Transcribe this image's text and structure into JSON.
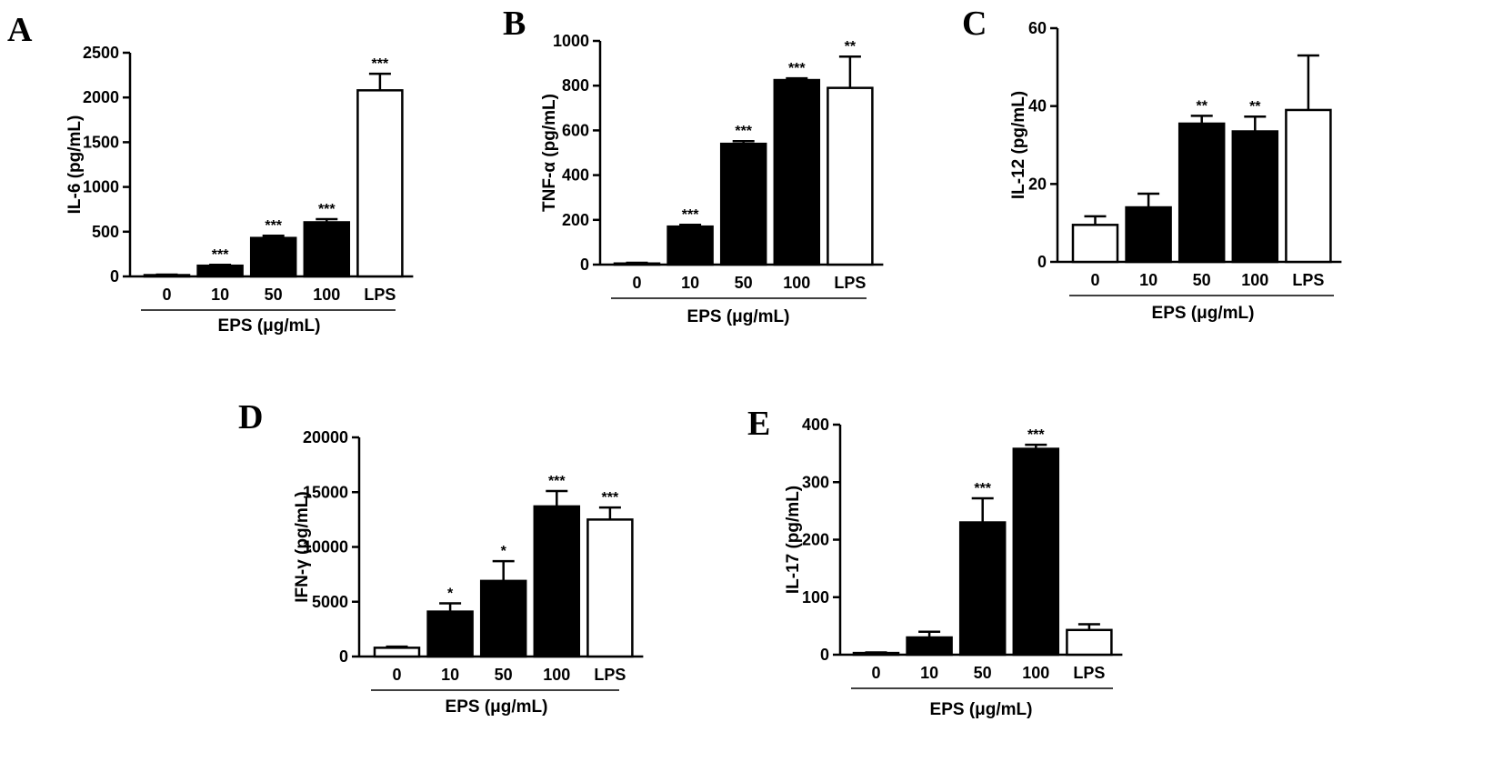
{
  "chart_data": [
    {
      "type": "bar",
      "panel": "A",
      "categories": [
        "0",
        "10",
        "50",
        "100",
        "LPS"
      ],
      "values": [
        15,
        120,
        430,
        605,
        2080
      ],
      "errors": [
        5,
        10,
        25,
        35,
        185
      ],
      "significance": [
        "",
        "***",
        "***",
        "***",
        "***"
      ],
      "fill": [
        "white",
        "black",
        "black",
        "black",
        "white"
      ],
      "ylabel": "IL-6 (pg/mL)",
      "xlabel": "EPS (μg/mL)",
      "yticks": [
        0,
        500,
        1000,
        1500,
        2000,
        2500
      ],
      "ylim": [
        0,
        2500
      ],
      "bracket_categories": 4
    },
    {
      "type": "bar",
      "panel": "B",
      "categories": [
        "0",
        "10",
        "50",
        "100",
        "LPS"
      ],
      "values": [
        5,
        170,
        540,
        825,
        790
      ],
      "errors": [
        3,
        8,
        12,
        8,
        140
      ],
      "significance": [
        "",
        "***",
        "***",
        "***",
        "**"
      ],
      "fill": [
        "white",
        "black",
        "black",
        "black",
        "white"
      ],
      "ylabel": "TNF-α (pg/mL)",
      "xlabel": "EPS (μg/mL)",
      "yticks": [
        0,
        200,
        400,
        600,
        800,
        1000
      ],
      "ylim": [
        0,
        1000
      ],
      "bracket_categories": 4
    },
    {
      "type": "bar",
      "panel": "C",
      "categories": [
        "0",
        "10",
        "50",
        "100",
        "LPS"
      ],
      "values": [
        9.5,
        14,
        35.5,
        33.5,
        39
      ],
      "errors": [
        2.2,
        3.5,
        2,
        3.8,
        14
      ],
      "significance": [
        "",
        "",
        "**",
        "**",
        ""
      ],
      "fill": [
        "white",
        "black",
        "black",
        "black",
        "white"
      ],
      "ylabel": "IL-12 (pg/mL)",
      "xlabel": "EPS (μg/mL)",
      "yticks": [
        0,
        20,
        40,
        60
      ],
      "ylim": [
        0,
        60
      ],
      "bracket_categories": 4
    },
    {
      "type": "bar",
      "panel": "D",
      "categories": [
        "0",
        "10",
        "50",
        "100",
        "LPS"
      ],
      "values": [
        800,
        4100,
        6900,
        13700,
        12500
      ],
      "errors": [
        100,
        750,
        1800,
        1400,
        1100
      ],
      "significance": [
        "",
        "*",
        "*",
        "***",
        "***"
      ],
      "fill": [
        "white",
        "black",
        "black",
        "black",
        "white"
      ],
      "ylabel": "IFN-γ (pg/mL)",
      "xlabel": "EPS (μg/mL)",
      "yticks": [
        0,
        5000,
        10000,
        15000,
        20000
      ],
      "ylim": [
        0,
        20000
      ],
      "bracket_categories": 4
    },
    {
      "type": "bar",
      "panel": "E",
      "categories": [
        "0",
        "10",
        "50",
        "100",
        "LPS"
      ],
      "values": [
        3,
        30,
        230,
        358,
        43
      ],
      "errors": [
        1,
        10,
        42,
        7,
        10
      ],
      "significance": [
        "",
        "",
        "***",
        "***",
        ""
      ],
      "fill": [
        "white",
        "black",
        "black",
        "black",
        "white"
      ],
      "ylabel": "IL-17 (pg/mL)",
      "xlabel": "EPS (μg/mL)",
      "yticks": [
        0,
        100,
        200,
        300,
        400
      ],
      "ylim": [
        0,
        400
      ],
      "bracket_categories": 4
    }
  ]
}
